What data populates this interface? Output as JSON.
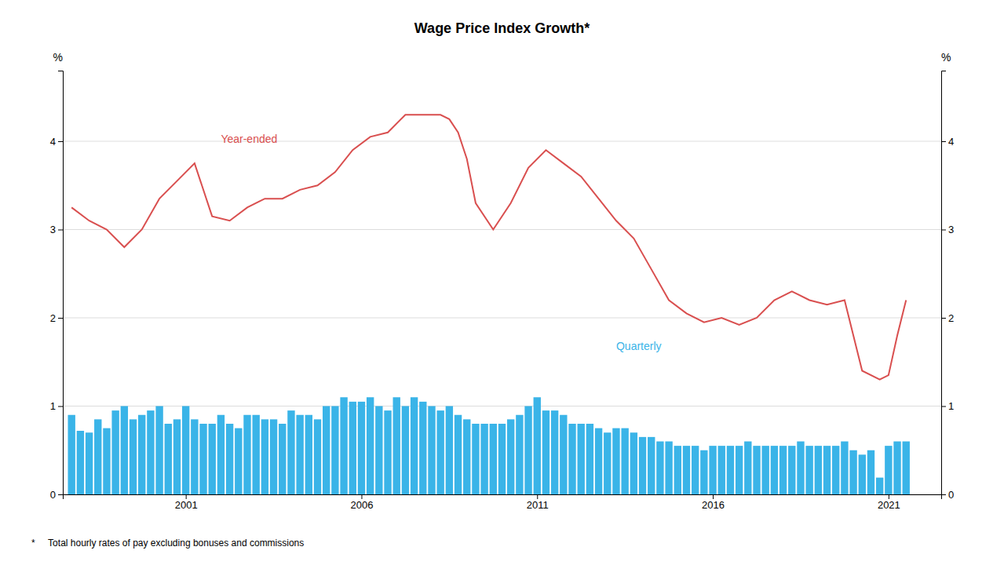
{
  "chart_data": {
    "type": "bar",
    "title": "Wage Price Index Growth*",
    "footnote": "*     Total hourly rates of pay excluding bonuses and commissions",
    "ylabel": "%",
    "y2label": "%",
    "xlim": [
      1997.5,
      2022.5
    ],
    "xticks": [
      2001,
      2006,
      2011,
      2016,
      2021
    ],
    "ylim": [
      0,
      4.8
    ],
    "yticks": [
      0,
      1,
      2,
      3,
      4
    ],
    "y2lim": [
      0,
      4.8
    ],
    "y2ticks": [
      0,
      1,
      2,
      3,
      4
    ],
    "grid": true,
    "series": [
      {
        "name": "Quarterly",
        "type": "bar",
        "color": "#3ab4e8",
        "x": [
          1997.75,
          1998.0,
          1998.25,
          1998.5,
          1998.75,
          1999.0,
          1999.25,
          1999.5,
          1999.75,
          2000.0,
          2000.25,
          2000.5,
          2000.75,
          2001.0,
          2001.25,
          2001.5,
          2001.75,
          2002.0,
          2002.25,
          2002.5,
          2002.75,
          2003.0,
          2003.25,
          2003.5,
          2003.75,
          2004.0,
          2004.25,
          2004.5,
          2004.75,
          2005.0,
          2005.25,
          2005.5,
          2005.75,
          2006.0,
          2006.25,
          2006.5,
          2006.75,
          2007.0,
          2007.25,
          2007.5,
          2007.75,
          2008.0,
          2008.25,
          2008.5,
          2008.75,
          2009.0,
          2009.25,
          2009.5,
          2009.75,
          2010.0,
          2010.25,
          2010.5,
          2010.75,
          2011.0,
          2011.25,
          2011.5,
          2011.75,
          2012.0,
          2012.25,
          2012.5,
          2012.75,
          2013.0,
          2013.25,
          2013.5,
          2013.75,
          2014.0,
          2014.25,
          2014.5,
          2014.75,
          2015.0,
          2015.25,
          2015.5,
          2015.75,
          2016.0,
          2016.25,
          2016.5,
          2016.75,
          2017.0,
          2017.25,
          2017.5,
          2017.75,
          2018.0,
          2018.25,
          2018.5,
          2018.75,
          2019.0,
          2019.25,
          2019.5,
          2019.75,
          2020.0,
          2020.25,
          2020.5,
          2020.75,
          2021.0,
          2021.25,
          2021.5
        ],
        "values": [
          0.9,
          0.72,
          0.7,
          0.85,
          0.75,
          0.95,
          1.0,
          0.85,
          0.9,
          0.95,
          1.0,
          0.8,
          0.85,
          1.0,
          0.85,
          0.8,
          0.8,
          0.9,
          0.8,
          0.75,
          0.9,
          0.9,
          0.85,
          0.85,
          0.8,
          0.95,
          0.9,
          0.9,
          0.85,
          1.0,
          1.0,
          1.1,
          1.05,
          1.05,
          1.1,
          1.0,
          0.95,
          1.1,
          1.0,
          1.1,
          1.05,
          1.0,
          0.95,
          1.0,
          0.9,
          0.85,
          0.8,
          0.8,
          0.8,
          0.8,
          0.85,
          0.9,
          1.0,
          1.1,
          0.95,
          0.95,
          0.9,
          0.8,
          0.8,
          0.8,
          0.75,
          0.7,
          0.75,
          0.75,
          0.7,
          0.65,
          0.65,
          0.6,
          0.6,
          0.55,
          0.55,
          0.55,
          0.5,
          0.55,
          0.55,
          0.55,
          0.55,
          0.6,
          0.55,
          0.55,
          0.55,
          0.55,
          0.55,
          0.6,
          0.55,
          0.55,
          0.55,
          0.55,
          0.6,
          0.5,
          0.45,
          0.5,
          0.19,
          0.55,
          0.6,
          0.6
        ]
      },
      {
        "name": "Year-ended",
        "type": "line",
        "color": "#d94f4f",
        "x": [
          1997.75,
          1998.25,
          1998.75,
          1999.25,
          1999.75,
          2000.25,
          2000.75,
          2001.25,
          2001.75,
          2002.25,
          2002.75,
          2003.25,
          2003.75,
          2004.25,
          2004.75,
          2005.25,
          2005.75,
          2006.25,
          2006.75,
          2007.25,
          2007.75,
          2008.25,
          2008.5,
          2008.75,
          2009.0,
          2009.25,
          2009.75,
          2010.25,
          2010.75,
          2011.25,
          2011.75,
          2012.25,
          2012.75,
          2013.25,
          2013.75,
          2014.25,
          2014.75,
          2015.25,
          2015.75,
          2016.25,
          2016.75,
          2017.25,
          2017.75,
          2018.25,
          2018.75,
          2019.25,
          2019.75,
          2020.0,
          2020.25,
          2020.75,
          2021.0,
          2021.25,
          2021.5
        ],
        "values": [
          3.25,
          3.1,
          3.0,
          2.8,
          3.0,
          3.35,
          3.55,
          3.75,
          3.15,
          3.1,
          3.25,
          3.35,
          3.35,
          3.45,
          3.5,
          3.65,
          3.9,
          4.05,
          4.1,
          4.3,
          4.3,
          4.3,
          4.25,
          4.1,
          3.8,
          3.3,
          3.0,
          3.3,
          3.7,
          3.9,
          3.75,
          3.6,
          3.35,
          3.1,
          2.9,
          2.55,
          2.2,
          2.05,
          1.95,
          2.0,
          1.92,
          2.0,
          2.2,
          2.3,
          2.2,
          2.15,
          2.2,
          1.8,
          1.4,
          1.3,
          1.35,
          1.8,
          2.2
        ]
      }
    ]
  }
}
